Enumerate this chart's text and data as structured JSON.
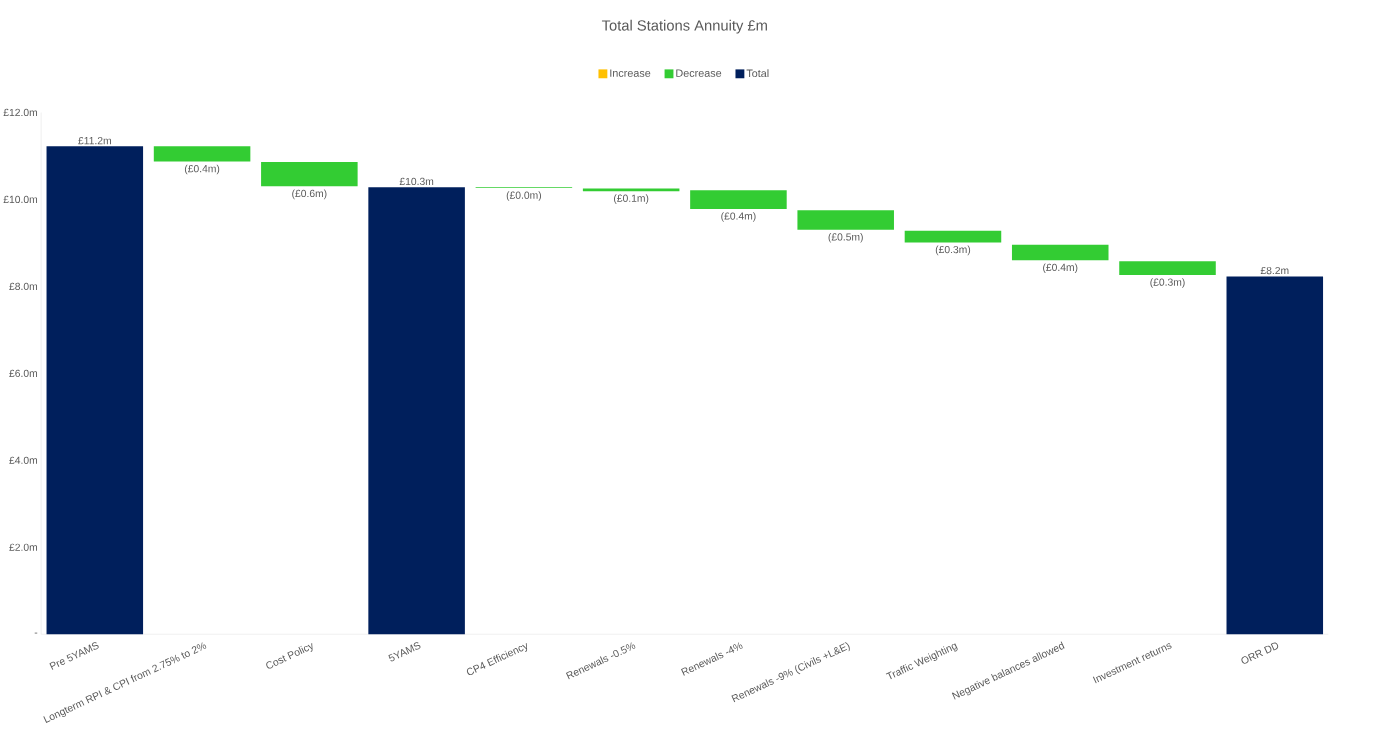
{
  "chart_data": {
    "type": "bar",
    "title": "Total Stations Annuity £m",
    "categories": [
      "Pre 5YAMS",
      "Longterm RPI & CPI from 2.75% to 2%",
      "Cost Policy",
      "5YAMS",
      "CP4 Efficiency",
      "Renewals -0.5%",
      "Renewals -4%",
      "Renewals -9% (Civils +L&E)",
      "Traffic Weighting",
      "Negative balances allowed",
      "Investment returns",
      "ORR DD"
    ],
    "series": [
      {
        "name": "Increase",
        "color": "#ffc000",
        "values": [
          null,
          null,
          null,
          null,
          null,
          null,
          null,
          null,
          null,
          null,
          null,
          null
        ]
      },
      {
        "name": "Decrease",
        "color": "#33cc33",
        "base": [
          null,
          10.87,
          10.3,
          null,
          10.26,
          10.19,
          9.78,
          9.3,
          9.01,
          8.6,
          8.26,
          null
        ],
        "values": [
          null,
          0.35,
          0.56,
          null,
          0.02,
          0.06,
          0.43,
          0.45,
          0.27,
          0.36,
          0.32,
          null
        ],
        "value_labels": [
          null,
          "(£0.4m)",
          "(£0.6m)",
          null,
          "(£0.0m)",
          "(£0.1m)",
          "(£0.4m)",
          "(£0.5m)",
          "(£0.3m)",
          "(£0.4m)",
          "(£0.3m)",
          null
        ]
      },
      {
        "name": "Total",
        "color": "#001f5c",
        "values": [
          11.22,
          null,
          null,
          10.28,
          null,
          null,
          null,
          null,
          null,
          null,
          null,
          8.23
        ],
        "value_labels": [
          "£11.2m",
          null,
          null,
          "£10.3m",
          null,
          null,
          null,
          null,
          null,
          null,
          null,
          "£8.2m"
        ]
      }
    ],
    "ylim": [
      0,
      12
    ],
    "yticks": [
      {
        "value": 0,
        "label": "-"
      },
      {
        "value": 2,
        "label": "£2.0m"
      },
      {
        "value": 4,
        "label": "£4.0m"
      },
      {
        "value": 6,
        "label": "£6.0m"
      },
      {
        "value": 8,
        "label": "£8.0m"
      },
      {
        "value": 10,
        "label": "£10.0m"
      },
      {
        "value": 12,
        "label": "£12.0m"
      }
    ],
    "legend": "top"
  }
}
